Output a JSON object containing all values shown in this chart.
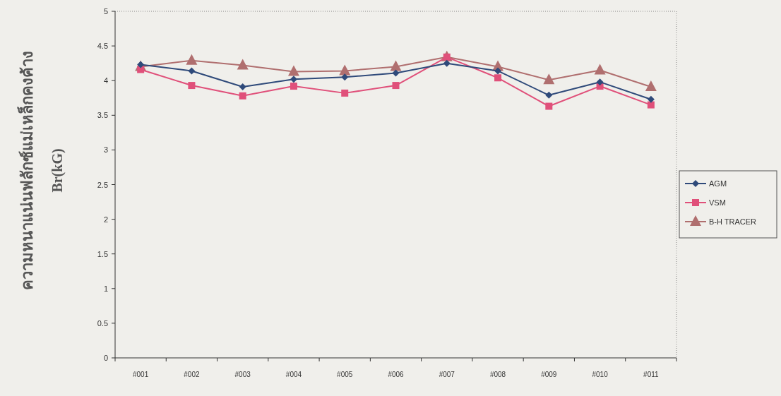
{
  "chart_data": {
    "type": "line",
    "ylabel": "ความหนาแน่นฟลักซ์แม่เหล็กคงค้าง",
    "annotations": [
      "Br(kG)"
    ],
    "categories": [
      "#001",
      "#002",
      "#003",
      "#004",
      "#005",
      "#006",
      "#007",
      "#008",
      "#009",
      "#010",
      "#011"
    ],
    "ylim": [
      0,
      5
    ],
    "yticks": [
      0,
      0.5,
      1,
      1.5,
      2,
      2.5,
      3,
      3.5,
      4,
      4.5,
      5
    ],
    "grid": false,
    "legend": "right",
    "line_style": "solid",
    "series": [
      {
        "name": "AGM",
        "color": "#2f4a7a",
        "marker": "diamond",
        "values": [
          4.23,
          4.14,
          3.91,
          4.02,
          4.05,
          4.11,
          4.25,
          4.14,
          3.79,
          3.98,
          3.73
        ]
      },
      {
        "name": "VSM",
        "color": "#e0507a",
        "marker": "square",
        "values": [
          4.16,
          3.93,
          3.78,
          3.92,
          3.82,
          3.93,
          4.34,
          4.04,
          3.63,
          3.92,
          3.65
        ]
      },
      {
        "name": "B-H TRACER",
        "color": "#b06f6f",
        "marker": "triangle",
        "values": [
          4.2,
          4.29,
          4.22,
          4.13,
          4.14,
          4.2,
          4.34,
          4.2,
          4.01,
          4.15,
          3.91
        ]
      }
    ]
  }
}
